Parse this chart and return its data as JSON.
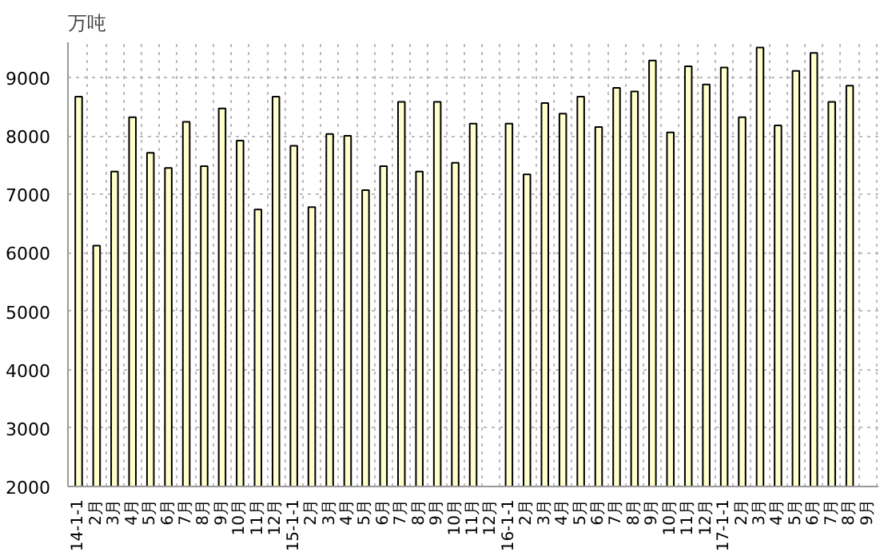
{
  "chart_data": {
    "type": "bar",
    "ylabel": "万吨",
    "categories": [
      "14-1-1",
      "2月",
      "3月",
      "4月",
      "5月",
      "6月",
      "7月",
      "8月",
      "9月",
      "10月",
      "11月",
      "12月",
      "15-1-1",
      "2月",
      "3月",
      "4月",
      "5月",
      "6月",
      "7月",
      "8月",
      "9月",
      "10月",
      "11月",
      "12月",
      "16-1-1",
      "2月",
      "3月",
      "4月",
      "5月",
      "6月",
      "7月",
      "8月",
      "9月",
      "10月",
      "11月",
      "12月",
      "17-1-1",
      "2月",
      "3月",
      "4月",
      "5月",
      "6月",
      "7月",
      "8月",
      "9月"
    ],
    "values": [
      8670,
      6120,
      7390,
      8320,
      7710,
      7450,
      8240,
      7480,
      8470,
      7920,
      6740,
      8670,
      7830,
      6780,
      8030,
      8000,
      7070,
      7480,
      8580,
      7390,
      8580,
      7540,
      8210,
      null,
      8210,
      7340,
      8560,
      8380,
      8670,
      8150,
      8820,
      8760,
      9290,
      8060,
      9190,
      8880,
      9170,
      8320,
      9510,
      8180,
      9110,
      9420,
      8580,
      8860,
      null
    ],
    "color": "#ffffcc",
    "ylim": [
      2000,
      9600
    ],
    "yticks": [
      2000,
      3000,
      4000,
      5000,
      6000,
      7000,
      8000,
      9000
    ],
    "grid": true
  }
}
